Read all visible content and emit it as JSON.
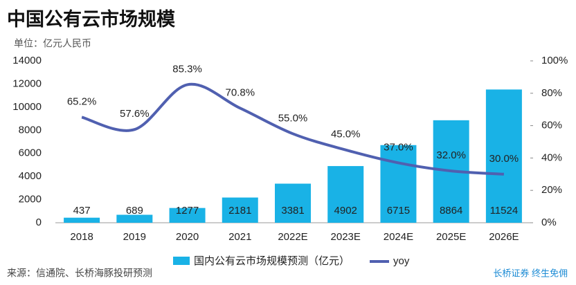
{
  "chart_data": {
    "type": "bar_line",
    "title": "中国公有云市场规模",
    "subtitle": "单位：亿元人民币",
    "source": "来源：信通院、长桥海豚投研预测",
    "brand": "长桥证券 终生免佣",
    "categories": [
      "2018",
      "2019",
      "2020",
      "2021",
      "2022E",
      "2023E",
      "2024E",
      "2025E",
      "2026E"
    ],
    "series": [
      {
        "name": "国内公有云市场规模预测（亿元）",
        "color": "#19b2e6",
        "values": [
          437,
          689,
          1277,
          2181,
          3381,
          4902,
          6715,
          8864,
          11524
        ]
      },
      {
        "name": "yoy",
        "color": "#5060b0",
        "axis": "y2",
        "values": [
          65.2,
          57.6,
          85.3,
          70.8,
          55.0,
          45.0,
          37.0,
          32.0,
          30.0
        ],
        "value_labels": [
          "65.2%",
          "57.6%",
          "85.3%",
          "70.8%",
          "55.0%",
          "45.0%",
          "37.0%",
          "32.0%",
          "30.0%"
        ]
      }
    ],
    "ylim": [
      0,
      14000
    ],
    "yticks": [
      0,
      2000,
      4000,
      6000,
      8000,
      10000,
      12000,
      14000
    ],
    "y2lim": [
      0,
      100
    ],
    "y2ticks": [
      {
        "value": 0,
        "label": "0%"
      },
      {
        "value": 20,
        "label": "20%"
      },
      {
        "value": 40,
        "label": "40%"
      },
      {
        "value": 60,
        "label": "60%"
      },
      {
        "value": 80,
        "label": "80%"
      },
      {
        "value": 100,
        "label": "100%"
      }
    ]
  }
}
